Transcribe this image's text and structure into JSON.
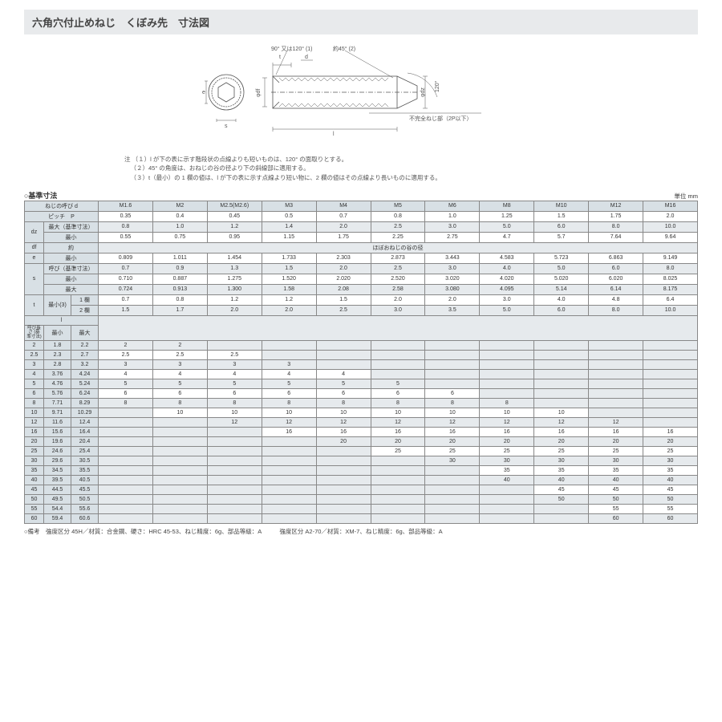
{
  "title": "六角穴付止めねじ　くぼみ先　寸法図",
  "diagram_labels": {
    "chamfer": "90° 又は120° (1)",
    "angle45": "約45° (2)",
    "t": "t",
    "d": "d",
    "df": "φdf",
    "dz": "φdz",
    "e": "e",
    "s": "s",
    "l": "l",
    "angle120": "120°",
    "incomplete": "不完全ねじ部（2P以下）"
  },
  "notes": {
    "prefix": "注",
    "n1": "（１）l が下の表に示す階段状の点線よりも短いものは、120° の面取りとする。",
    "n2": "（２）45° の角度は、おねじの谷の径より下の斜線部に適用する。",
    "n3": "（３）t（最小）の 1 欄の値は、l が下の表に示す点線より短い物に、2 欄の値はその点線より長いものに適用する。"
  },
  "sectionLabel": "○基準寸法",
  "unit": "単位 mm",
  "cols": [
    "M1.6",
    "M2",
    "M2.5(M2.6)",
    "M3",
    "M4",
    "M5",
    "M6",
    "M8",
    "M10",
    "M12",
    "M16"
  ],
  "rows": {
    "thread": "ねじの呼び d",
    "pitch": "ピッチ　P",
    "pitchV": [
      "0.35",
      "0.4",
      "0.45",
      "0.5",
      "0.7",
      "0.8",
      "1.0",
      "1.25",
      "1.5",
      "1.75",
      "2.0"
    ],
    "dz": "dz",
    "dzMaxL": "最大（基準寸法）",
    "dzMinL": "最小",
    "dzMax": [
      "0.8",
      "1.0",
      "1.2",
      "1.4",
      "2.0",
      "2.5",
      "3.0",
      "5.0",
      "6.0",
      "8.0",
      "10.0"
    ],
    "dzMin": [
      "0.55",
      "0.75",
      "0.95",
      "1.15",
      "1.75",
      "2.25",
      "2.75",
      "4.7",
      "5.7",
      "7.64",
      "9.64"
    ],
    "df": "df",
    "dfAbout": "約",
    "dfNote": "ほぼおねじの谷の径",
    "e": "e",
    "eMinL": "最小",
    "eMin": [
      "0.809",
      "1.011",
      "1.454",
      "1.733",
      "2.303",
      "2.873",
      "3.443",
      "4.583",
      "5.723",
      "6.863",
      "9.149"
    ],
    "s": "s",
    "sNomL": "呼び（基準寸法）",
    "sMinL": "最小",
    "sMaxL": "最大",
    "sNom": [
      "0.7",
      "0.9",
      "1.3",
      "1.5",
      "2.0",
      "2.5",
      "3.0",
      "4.0",
      "5.0",
      "6.0",
      "8.0"
    ],
    "sMin": [
      "0.710",
      "0.887",
      "1.275",
      "1.520",
      "2.020",
      "2.520",
      "3.020",
      "4.020",
      "5.020",
      "6.020",
      "8.025"
    ],
    "sMax": [
      "0.724",
      "0.913",
      "1.300",
      "1.58",
      "2.08",
      "2.58",
      "3.080",
      "4.095",
      "5.14",
      "6.14",
      "8.175"
    ],
    "t": "t",
    "tMinL": "最小(3)",
    "t1L": "1 欄",
    "t2L": "2 欄",
    "t1": [
      "0.7",
      "0.8",
      "1.2",
      "1.2",
      "1.5",
      "2.0",
      "2.0",
      "3.0",
      "4.0",
      "4.8",
      "6.4"
    ],
    "t2": [
      "1.5",
      "1.7",
      "2.0",
      "2.0",
      "2.5",
      "3.0",
      "3.5",
      "5.0",
      "6.0",
      "8.0",
      "10.0"
    ],
    "l": "l",
    "lNom": "呼び長さ\n(基準寸法)",
    "lMin": "最小",
    "lMax": "最大"
  },
  "lengths": [
    {
      "n": "2",
      "min": "1.8",
      "max": "2.2",
      "v": [
        "2",
        "2",
        "",
        "",
        "",
        "",
        "",
        "",
        "",
        "",
        ""
      ]
    },
    {
      "n": "2.5",
      "min": "2.3",
      "max": "2.7",
      "v": [
        "2.5",
        "2.5",
        "2.5",
        "",
        "",
        "",
        "",
        "",
        "",
        "",
        ""
      ]
    },
    {
      "n": "3",
      "min": "2.8",
      "max": "3.2",
      "v": [
        "3",
        "3",
        "3",
        "3",
        "",
        "",
        "",
        "",
        "",
        "",
        ""
      ]
    },
    {
      "n": "4",
      "min": "3.76",
      "max": "4.24",
      "v": [
        "4",
        "4",
        "4",
        "4",
        "4",
        "",
        "",
        "",
        "",
        "",
        ""
      ]
    },
    {
      "n": "5",
      "min": "4.76",
      "max": "5.24",
      "v": [
        "5",
        "5",
        "5",
        "5",
        "5",
        "5",
        "",
        "",
        "",
        "",
        ""
      ]
    },
    {
      "n": "6",
      "min": "5.76",
      "max": "6.24",
      "v": [
        "6",
        "6",
        "6",
        "6",
        "6",
        "6",
        "6",
        "",
        "",
        "",
        ""
      ]
    },
    {
      "n": "8",
      "min": "7.71",
      "max": "8.29",
      "v": [
        "8",
        "8",
        "8",
        "8",
        "8",
        "8",
        "8",
        "8",
        "",
        "",
        ""
      ]
    },
    {
      "n": "10",
      "min": "9.71",
      "max": "10.29",
      "v": [
        "",
        "10",
        "10",
        "10",
        "10",
        "10",
        "10",
        "10",
        "10",
        "",
        ""
      ]
    },
    {
      "n": "12",
      "min": "11.6",
      "max": "12.4",
      "v": [
        "",
        "",
        "12",
        "12",
        "12",
        "12",
        "12",
        "12",
        "12",
        "12",
        ""
      ]
    },
    {
      "n": "16",
      "min": "15.6",
      "max": "16.4",
      "v": [
        "",
        "",
        "",
        "16",
        "16",
        "16",
        "16",
        "16",
        "16",
        "16",
        "16"
      ]
    },
    {
      "n": "20",
      "min": "19.6",
      "max": "20.4",
      "v": [
        "",
        "",
        "",
        "",
        "20",
        "20",
        "20",
        "20",
        "20",
        "20",
        "20"
      ]
    },
    {
      "n": "25",
      "min": "24.6",
      "max": "25.4",
      "v": [
        "",
        "",
        "",
        "",
        "",
        "25",
        "25",
        "25",
        "25",
        "25",
        "25"
      ]
    },
    {
      "n": "30",
      "min": "29.6",
      "max": "30.5",
      "v": [
        "",
        "",
        "",
        "",
        "",
        "",
        "30",
        "30",
        "30",
        "30",
        "30"
      ]
    },
    {
      "n": "35",
      "min": "34.5",
      "max": "35.5",
      "v": [
        "",
        "",
        "",
        "",
        "",
        "",
        "",
        "35",
        "35",
        "35",
        "35"
      ]
    },
    {
      "n": "40",
      "min": "39.5",
      "max": "40.5",
      "v": [
        "",
        "",
        "",
        "",
        "",
        "",
        "",
        "40",
        "40",
        "40",
        "40"
      ]
    },
    {
      "n": "45",
      "min": "44.5",
      "max": "45.5",
      "v": [
        "",
        "",
        "",
        "",
        "",
        "",
        "",
        "",
        "45",
        "45",
        "45"
      ]
    },
    {
      "n": "50",
      "min": "49.5",
      "max": "50.5",
      "v": [
        "",
        "",
        "",
        "",
        "",
        "",
        "",
        "",
        "50",
        "50",
        "50"
      ]
    },
    {
      "n": "55",
      "min": "54.4",
      "max": "55.6",
      "v": [
        "",
        "",
        "",
        "",
        "",
        "",
        "",
        "",
        "",
        "55",
        "55"
      ]
    },
    {
      "n": "60",
      "min": "59.4",
      "max": "60.6",
      "v": [
        "",
        "",
        "",
        "",
        "",
        "",
        "",
        "",
        "",
        "60",
        "60"
      ]
    }
  ],
  "remarks": "○備考　強度区分 45H／材質：合金鋼、硬さ：HRC 45-53、ねじ精度：6g、部品等級：A　　　強度区分 A2-70／材質：XM-7、ねじ精度：6g、部品等級：A"
}
